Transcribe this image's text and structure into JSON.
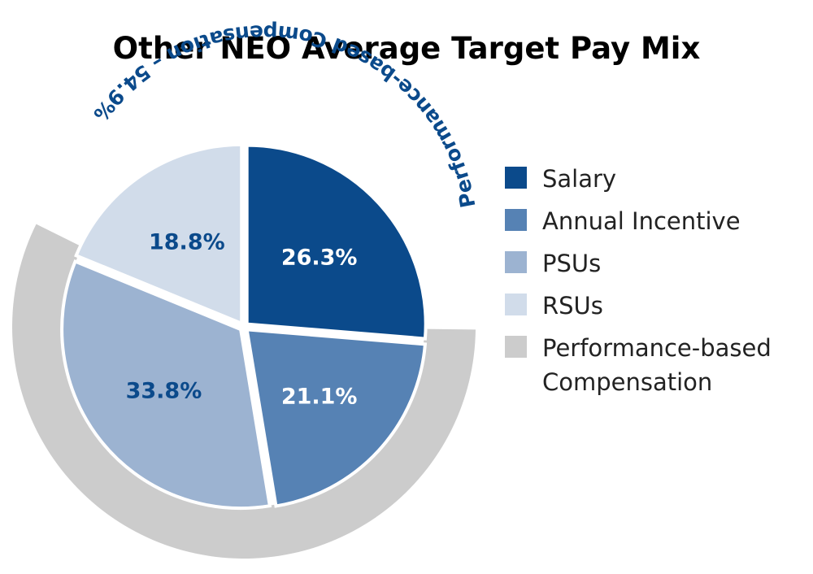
{
  "chart_data": {
    "type": "pie",
    "title": "Other NEO Average Target Pay Mix",
    "categories": [
      "Salary",
      "Annual Incentive",
      "PSUs",
      "RSUs"
    ],
    "values": [
      26.3,
      21.1,
      33.8,
      18.8
    ],
    "value_labels": [
      "26.3%",
      "21.1%",
      "33.8%",
      "18.8%"
    ],
    "colors": [
      "#0b4a8b",
      "#5682b4",
      "#9cb3d1",
      "#d1dcea"
    ],
    "label_colors": [
      "#ffffff",
      "#ffffff",
      "#0b4a8b",
      "#0b4a8b"
    ],
    "group_band": {
      "name": "Performance-based Compensation",
      "label": "Performance-based Compensation – 54.9%",
      "value": 54.9,
      "color": "#cccccc",
      "text_color": "#0b4a8b",
      "covers": [
        "Annual Incentive",
        "PSUs"
      ]
    },
    "legend": {
      "placement": "right",
      "entries": [
        {
          "label": "Salary",
          "color": "#0b4a8b"
        },
        {
          "label": "Annual Incentive",
          "color": "#5682b4"
        },
        {
          "label": "PSUs",
          "color": "#9cb3d1"
        },
        {
          "label": "RSUs",
          "color": "#d1dcea"
        },
        {
          "label": "Performance-based",
          "label_line2": "Compensation",
          "color": "#cccccc"
        }
      ]
    }
  }
}
